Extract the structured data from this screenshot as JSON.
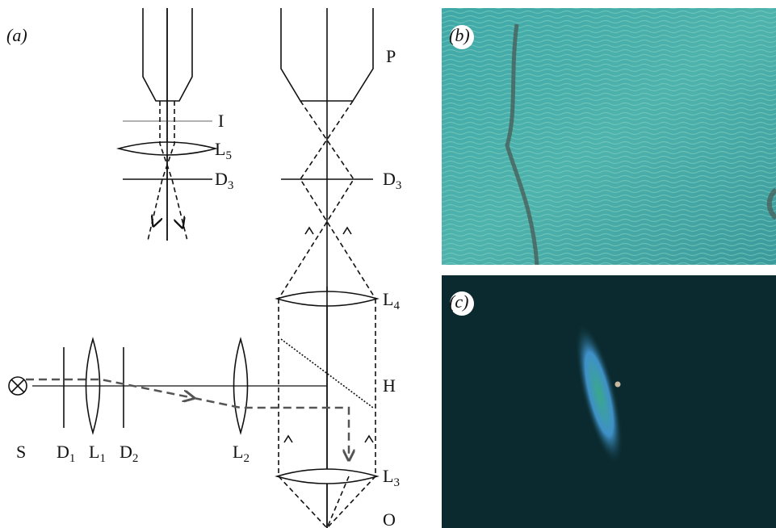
{
  "panel_labels": [
    "(a)",
    "(b)",
    "(c)"
  ],
  "diagram": {
    "labels": [
      {
        "base": "P"
      },
      {
        "base": "I"
      },
      {
        "base": "L",
        "sub": "5"
      },
      {
        "base": "D",
        "sub": "3"
      },
      {
        "base": "D",
        "sub": "3"
      },
      {
        "base": "L",
        "sub": "4"
      },
      {
        "base": "H"
      },
      {
        "base": "L",
        "sub": "3"
      },
      {
        "base": "O"
      },
      {
        "base": "S"
      },
      {
        "base": "D",
        "sub": "1"
      },
      {
        "base": "L",
        "sub": "1"
      },
      {
        "base": "D",
        "sub": "2"
      },
      {
        "base": "L",
        "sub": "2"
      }
    ]
  }
}
